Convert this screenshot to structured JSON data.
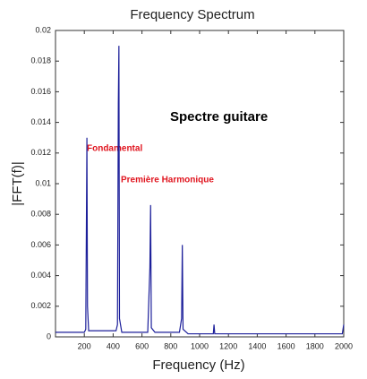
{
  "chart_data": {
    "type": "line",
    "title": "Frequency Spectrum",
    "xlabel": "Frequency (Hz)",
    "ylabel": "|FFT(f)|",
    "annotations": [
      "Spectre guitare",
      "Fondamental",
      "Première Harmonique"
    ],
    "x": [
      0,
      200,
      210,
      218,
      222,
      230,
      420,
      430,
      436,
      440,
      444,
      460,
      640,
      655,
      660,
      665,
      690,
      860,
      875,
      880,
      885,
      920,
      1095,
      1100,
      1105,
      1990,
      2000
    ],
    "series": [
      {
        "name": "|FFT(f)|",
        "color": "#1c1f9a",
        "values": [
          0.0003,
          0.0003,
          0.0005,
          0.013,
          0.002,
          0.0004,
          0.0004,
          0.0008,
          0.0152,
          0.019,
          0.0012,
          0.0003,
          0.0003,
          0.0045,
          0.0086,
          0.0006,
          0.0003,
          0.0003,
          0.0012,
          0.006,
          0.0005,
          0.0002,
          0.0002,
          0.0008,
          0.0002,
          0.0002,
          0.0008
        ]
      }
    ],
    "xlim": [
      0,
      2000
    ],
    "xticks": [
      200,
      400,
      600,
      800,
      1000,
      1200,
      1400,
      1600,
      1800,
      2000
    ],
    "ylim": [
      0,
      0.02
    ],
    "yticks": [
      0,
      0.002,
      0.004,
      0.006,
      0.008,
      0.01,
      0.012,
      0.014,
      0.016,
      0.018,
      0.02
    ]
  }
}
